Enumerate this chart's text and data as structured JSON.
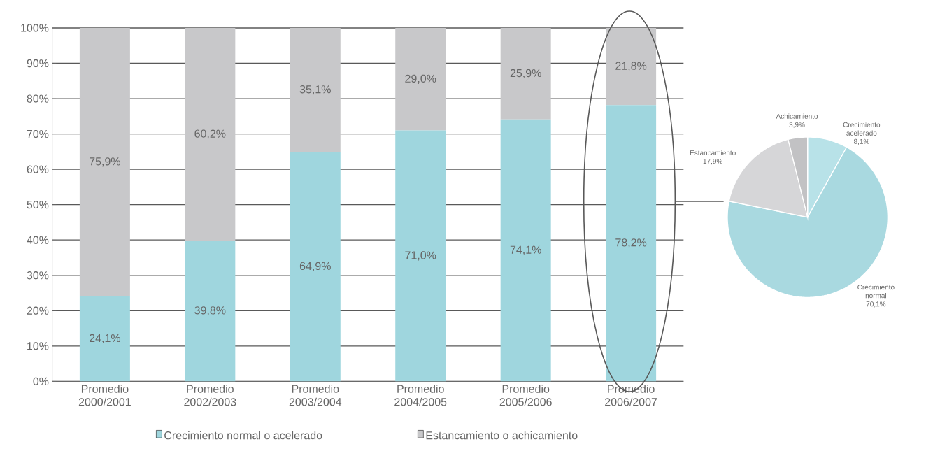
{
  "chart_data": [
    {
      "type": "bar",
      "stacked": true,
      "categories": [
        "Promedio 2000/2001",
        "Promedio 2002/2003",
        "Promedio 2003/2004",
        "Promedio 2004/2005",
        "Promedio 2005/2006",
        "Promedio 2006/2007"
      ],
      "series": [
        {
          "name": "Crecimiento normal o acelerado",
          "color": "#9fd6de",
          "values": [
            24.1,
            39.8,
            64.9,
            71.0,
            74.1,
            78.2
          ],
          "value_labels": [
            "24,1%",
            "39,8%",
            "64,9%",
            "71,0%",
            "74,1%",
            "78,2%"
          ]
        },
        {
          "name": "Estancamiento o achicamiento",
          "color": "#c8c8ca",
          "values": [
            75.9,
            60.2,
            35.1,
            29.0,
            25.9,
            21.8
          ],
          "value_labels": [
            "75,9%",
            "60,2%",
            "35,1%",
            "29,0%",
            "25,9%",
            "21,8%"
          ]
        }
      ],
      "ylim": [
        0,
        100
      ],
      "yticks": [
        {
          "value": 0,
          "label": "0%"
        },
        {
          "value": 10,
          "label": "10%"
        },
        {
          "value": 20,
          "label": "20%"
        },
        {
          "value": 30,
          "label": "30%"
        },
        {
          "value": 40,
          "label": "40%"
        },
        {
          "value": 50,
          "label": "50%"
        },
        {
          "value": 60,
          "label": "60%"
        },
        {
          "value": 70,
          "label": "70%"
        },
        {
          "value": 80,
          "label": "80%"
        },
        {
          "value": 90,
          "label": "90%"
        },
        {
          "value": 100,
          "label": "100%"
        }
      ],
      "grid": "y",
      "legend": "bottom"
    },
    {
      "type": "pie",
      "categories": [
        "Crecimiento acelerado",
        "Crecimiento normal",
        "Estancamiento",
        "Achicamiento"
      ],
      "values": [
        8.1,
        70.1,
        17.9,
        3.9
      ],
      "value_labels": [
        "8,1%",
        "70,1%",
        "17,9%",
        "3,9%"
      ],
      "colors": [
        "#b8e2e8",
        "#a9d9e0",
        "#d6d6d8",
        "#c2c2c4"
      ]
    }
  ]
}
